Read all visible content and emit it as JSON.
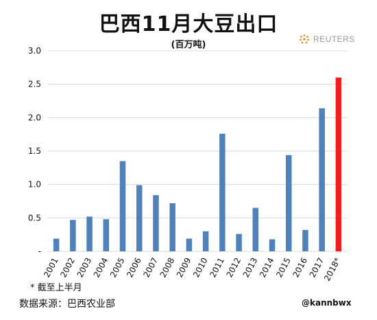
{
  "header": {
    "title": "巴西11月大豆出口",
    "subtitle": "(百万吨)",
    "logo_text": "REUTERS"
  },
  "footer": {
    "footnote": "* 截至上半月",
    "source": "数据来源：巴西农业部",
    "watermark": "@kannbwx"
  },
  "colors": {
    "bar": "#4f81bd",
    "highlight": "#ff1a1a",
    "grid": "#d9d9d9"
  },
  "chart_data": {
    "type": "bar",
    "title": "巴西11月大豆出口",
    "subtitle": "(百万吨)",
    "categories": [
      "2001",
      "2002",
      "2003",
      "2004",
      "2005",
      "2006",
      "2007",
      "2008",
      "2009",
      "2010",
      "2011",
      "2012",
      "2013",
      "2014",
      "2015",
      "2016",
      "2017",
      "2018*"
    ],
    "values": [
      0.19,
      0.47,
      0.52,
      0.48,
      1.35,
      0.99,
      0.84,
      0.72,
      0.19,
      0.3,
      1.76,
      0.26,
      0.65,
      0.18,
      1.44,
      0.32,
      2.14,
      2.6
    ],
    "highlight_category": "2018*",
    "ylim": [
      0,
      3.0
    ],
    "yticks": [
      "-",
      "0.5",
      "1.0",
      "1.5",
      "2.0",
      "2.5",
      "3.0"
    ],
    "xlabel": "",
    "ylabel": "",
    "grid": true,
    "legend": "none"
  }
}
